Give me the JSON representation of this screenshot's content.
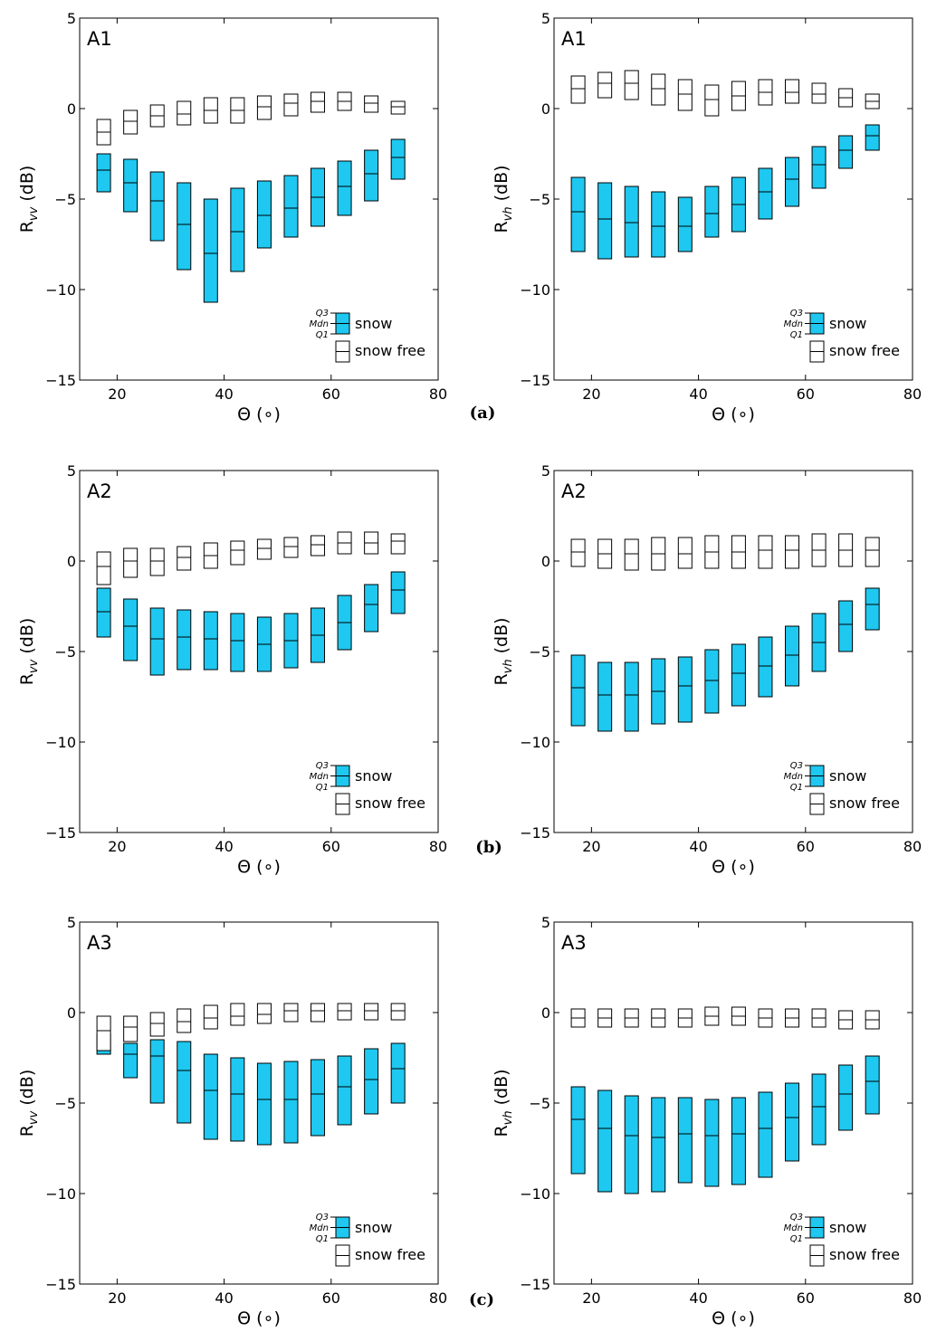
{
  "colors": {
    "snow": "#1ec8f0",
    "snow_free": "#ffffff",
    "stroke": "#000000"
  },
  "chart_data": [
    {
      "type": "box",
      "panel": "A1",
      "row_caption": "(a)",
      "ylabel_main": "R",
      "ylabel_sub": "vv",
      "ylabel_unit": " (dB)",
      "xlabel": "Θ (∘)",
      "xlim": [
        13,
        80
      ],
      "ylim": [
        -15,
        5
      ],
      "xticks": [
        20,
        40,
        60,
        80
      ],
      "yticks": [
        5,
        0,
        -5,
        -10,
        -15
      ],
      "xtick_labels": [
        "20",
        "40",
        "60",
        "80"
      ],
      "ytick_labels": [
        "5",
        "0",
        "−5",
        "−10",
        "−15"
      ],
      "x": [
        17.5,
        22.5,
        27.5,
        32.5,
        37.5,
        42.5,
        47.5,
        52.5,
        57.5,
        62.5,
        67.5,
        72.5
      ],
      "legend": {
        "q3": "Q3",
        "mdn": "Mdn",
        "q1": "Q1",
        "snow": "snow",
        "snow_free": "snow free"
      },
      "series": [
        {
          "name": "snow",
          "q1": [
            -4.6,
            -5.7,
            -7.3,
            -8.9,
            -10.7,
            -9.0,
            -7.7,
            -7.1,
            -6.5,
            -5.9,
            -5.1,
            -3.9
          ],
          "median": [
            -3.4,
            -4.1,
            -5.1,
            -6.4,
            -8.0,
            -6.8,
            -5.9,
            -5.5,
            -4.9,
            -4.3,
            -3.6,
            -2.7
          ],
          "q3": [
            -2.5,
            -2.8,
            -3.5,
            -4.1,
            -5.0,
            -4.4,
            -4.0,
            -3.7,
            -3.3,
            -2.9,
            -2.3,
            -1.7
          ]
        },
        {
          "name": "snow free",
          "q1": [
            -2.0,
            -1.4,
            -1.0,
            -0.9,
            -0.8,
            -0.8,
            -0.6,
            -0.4,
            -0.2,
            -0.1,
            -0.2,
            -0.3
          ],
          "median": [
            -1.3,
            -0.7,
            -0.4,
            -0.3,
            -0.1,
            -0.1,
            0.1,
            0.3,
            0.4,
            0.4,
            0.3,
            0.1
          ],
          "q3": [
            -0.6,
            -0.1,
            0.2,
            0.4,
            0.6,
            0.6,
            0.7,
            0.8,
            0.9,
            0.9,
            0.7,
            0.4
          ]
        }
      ]
    },
    {
      "type": "box",
      "panel": "A1",
      "row_caption": "",
      "ylabel_main": "R",
      "ylabel_sub": "vh",
      "ylabel_unit": " (dB)",
      "xlabel": "Θ (∘)",
      "xlim": [
        13,
        80
      ],
      "ylim": [
        -15,
        5
      ],
      "xticks": [
        20,
        40,
        60,
        80
      ],
      "yticks": [
        5,
        0,
        -5,
        -10,
        -15
      ],
      "xtick_labels": [
        "20",
        "40",
        "60",
        "80"
      ],
      "ytick_labels": [
        "5",
        "0",
        "−5",
        "−10",
        "−15"
      ],
      "x": [
        17.5,
        22.5,
        27.5,
        32.5,
        37.5,
        42.5,
        47.5,
        52.5,
        57.5,
        62.5,
        67.5,
        72.5
      ],
      "legend": {
        "q3": "Q3",
        "mdn": "Mdn",
        "q1": "Q1",
        "snow": "snow",
        "snow_free": "snow free"
      },
      "series": [
        {
          "name": "snow",
          "q1": [
            -7.9,
            -8.3,
            -8.2,
            -8.2,
            -7.9,
            -7.1,
            -6.8,
            -6.1,
            -5.4,
            -4.4,
            -3.3,
            -2.3
          ],
          "median": [
            -5.7,
            -6.1,
            -6.3,
            -6.5,
            -6.5,
            -5.8,
            -5.3,
            -4.6,
            -3.9,
            -3.1,
            -2.3,
            -1.5
          ],
          "q3": [
            -3.8,
            -4.1,
            -4.3,
            -4.6,
            -4.9,
            -4.3,
            -3.8,
            -3.3,
            -2.7,
            -2.1,
            -1.5,
            -0.9
          ]
        },
        {
          "name": "snow free",
          "q1": [
            0.3,
            0.6,
            0.5,
            0.2,
            -0.1,
            -0.4,
            -0.1,
            0.2,
            0.3,
            0.3,
            0.1,
            0.0
          ],
          "median": [
            1.1,
            1.4,
            1.4,
            1.1,
            0.8,
            0.5,
            0.7,
            0.9,
            0.9,
            0.8,
            0.6,
            0.4
          ],
          "q3": [
            1.8,
            2.0,
            2.1,
            1.9,
            1.6,
            1.3,
            1.5,
            1.6,
            1.6,
            1.4,
            1.1,
            0.8
          ]
        }
      ]
    },
    {
      "type": "box",
      "panel": "A2",
      "row_caption": "(b)",
      "ylabel_main": "R",
      "ylabel_sub": "vv",
      "ylabel_unit": " (dB)",
      "xlabel": "Θ (∘)",
      "xlim": [
        13,
        80
      ],
      "ylim": [
        -15,
        5
      ],
      "xticks": [
        20,
        40,
        60,
        80
      ],
      "yticks": [
        5,
        0,
        -5,
        -10,
        -15
      ],
      "xtick_labels": [
        "20",
        "40",
        "60",
        "80"
      ],
      "ytick_labels": [
        "5",
        "0",
        "−5",
        "−10",
        "−15"
      ],
      "x": [
        17.5,
        22.5,
        27.5,
        32.5,
        37.5,
        42.5,
        47.5,
        52.5,
        57.5,
        62.5,
        67.5,
        72.5
      ],
      "legend": {
        "q3": "Q3",
        "mdn": "Mdn",
        "q1": "Q1",
        "snow": "snow",
        "snow_free": "snow free"
      },
      "series": [
        {
          "name": "snow",
          "q1": [
            -4.2,
            -5.5,
            -6.3,
            -6.0,
            -6.0,
            -6.1,
            -6.1,
            -5.9,
            -5.6,
            -4.9,
            -3.9,
            -2.9
          ],
          "median": [
            -2.8,
            -3.6,
            -4.3,
            -4.2,
            -4.3,
            -4.4,
            -4.6,
            -4.4,
            -4.1,
            -3.4,
            -2.4,
            -1.6
          ],
          "q3": [
            -1.5,
            -2.1,
            -2.6,
            -2.7,
            -2.8,
            -2.9,
            -3.1,
            -2.9,
            -2.6,
            -1.9,
            -1.3,
            -0.6
          ]
        },
        {
          "name": "snow free",
          "q1": [
            -1.3,
            -0.9,
            -0.8,
            -0.5,
            -0.4,
            -0.2,
            0.1,
            0.2,
            0.3,
            0.4,
            0.4,
            0.4
          ],
          "median": [
            -0.3,
            0.0,
            0.0,
            0.2,
            0.3,
            0.6,
            0.7,
            0.8,
            0.9,
            1.0,
            1.0,
            1.1
          ],
          "q3": [
            0.5,
            0.7,
            0.7,
            0.8,
            1.0,
            1.1,
            1.2,
            1.3,
            1.4,
            1.6,
            1.6,
            1.5
          ]
        }
      ]
    },
    {
      "type": "box",
      "panel": "A2",
      "row_caption": "",
      "ylabel_main": "R",
      "ylabel_sub": "vh",
      "ylabel_unit": " (dB)",
      "xlabel": "Θ (∘)",
      "xlim": [
        13,
        80
      ],
      "ylim": [
        -15,
        5
      ],
      "xticks": [
        20,
        40,
        60,
        80
      ],
      "yticks": [
        5,
        0,
        -5,
        -10,
        -15
      ],
      "xtick_labels": [
        "20",
        "40",
        "60",
        "80"
      ],
      "ytick_labels": [
        "5",
        "0",
        "−5",
        "−10",
        "−15"
      ],
      "x": [
        17.5,
        22.5,
        27.5,
        32.5,
        37.5,
        42.5,
        47.5,
        52.5,
        57.5,
        62.5,
        67.5,
        72.5
      ],
      "legend": {
        "q3": "Q3",
        "mdn": "Mdn",
        "q1": "Q1",
        "snow": "snow",
        "snow_free": "snow free"
      },
      "series": [
        {
          "name": "snow",
          "q1": [
            -9.1,
            -9.4,
            -9.4,
            -9.0,
            -8.9,
            -8.4,
            -8.0,
            -7.5,
            -6.9,
            -6.1,
            -5.0,
            -3.8
          ],
          "median": [
            -7.0,
            -7.4,
            -7.4,
            -7.2,
            -6.9,
            -6.6,
            -6.2,
            -5.8,
            -5.2,
            -4.5,
            -3.5,
            -2.4
          ],
          "q3": [
            -5.2,
            -5.6,
            -5.6,
            -5.4,
            -5.3,
            -4.9,
            -4.6,
            -4.2,
            -3.6,
            -2.9,
            -2.2,
            -1.5
          ]
        },
        {
          "name": "snow free",
          "q1": [
            -0.3,
            -0.4,
            -0.5,
            -0.5,
            -0.4,
            -0.4,
            -0.4,
            -0.4,
            -0.4,
            -0.3,
            -0.3,
            -0.3
          ],
          "median": [
            0.5,
            0.4,
            0.4,
            0.4,
            0.4,
            0.5,
            0.5,
            0.6,
            0.6,
            0.6,
            0.6,
            0.6
          ],
          "q3": [
            1.2,
            1.2,
            1.2,
            1.3,
            1.3,
            1.4,
            1.4,
            1.4,
            1.4,
            1.5,
            1.5,
            1.3
          ]
        }
      ]
    },
    {
      "type": "box",
      "panel": "A3",
      "row_caption": "(c)",
      "ylabel_main": "R",
      "ylabel_sub": "vv",
      "ylabel_unit": " (dB)",
      "xlabel": "Θ (∘)",
      "xlim": [
        13,
        80
      ],
      "ylim": [
        -15,
        5
      ],
      "xticks": [
        20,
        40,
        60,
        80
      ],
      "yticks": [
        5,
        0,
        -5,
        -10,
        -15
      ],
      "xtick_labels": [
        "20",
        "40",
        "60",
        "80"
      ],
      "ytick_labels": [
        "5",
        "0",
        "−5",
        "−10",
        "−15"
      ],
      "x": [
        17.5,
        22.5,
        27.5,
        32.5,
        37.5,
        42.5,
        47.5,
        52.5,
        57.5,
        62.5,
        67.5,
        72.5
      ],
      "legend": {
        "q3": "Q3",
        "mdn": "Mdn",
        "q1": "Q1",
        "snow": "snow",
        "snow_free": "snow free"
      },
      "series": [
        {
          "name": "snow",
          "q1": [
            -2.3,
            -3.6,
            -5.0,
            -6.1,
            -7.0,
            -7.1,
            -7.3,
            -7.2,
            -6.8,
            -6.2,
            -5.6,
            -5.0
          ],
          "median": [
            -2.0,
            -2.3,
            -2.4,
            -3.2,
            -4.3,
            -4.5,
            -4.8,
            -4.8,
            -4.5,
            -4.1,
            -3.7,
            -3.1
          ],
          "q3": [
            -1.2,
            -1.7,
            -1.5,
            -1.6,
            -2.3,
            -2.5,
            -2.8,
            -2.7,
            -2.6,
            -2.4,
            -2.0,
            -1.7
          ]
        },
        {
          "name": "snow free",
          "q1": [
            -2.1,
            -1.6,
            -1.3,
            -1.1,
            -0.9,
            -0.7,
            -0.6,
            -0.5,
            -0.5,
            -0.4,
            -0.4,
            -0.4
          ],
          "median": [
            -1.0,
            -0.8,
            -0.6,
            -0.5,
            -0.3,
            -0.2,
            -0.1,
            0.1,
            0.1,
            0.1,
            0.1,
            0.1
          ],
          "q3": [
            -0.2,
            -0.2,
            0.0,
            0.2,
            0.4,
            0.5,
            0.5,
            0.5,
            0.5,
            0.5,
            0.5,
            0.5
          ]
        }
      ]
    },
    {
      "type": "box",
      "panel": "A3",
      "row_caption": "",
      "ylabel_main": "R",
      "ylabel_sub": "vh",
      "ylabel_unit": " (dB)",
      "xlabel": "Θ (∘)",
      "xlim": [
        13,
        80
      ],
      "ylim": [
        -15,
        5
      ],
      "xticks": [
        20,
        40,
        60,
        80
      ],
      "yticks": [
        5,
        0,
        -5,
        -10,
        -15
      ],
      "xtick_labels": [
        "20",
        "40",
        "60",
        "80"
      ],
      "ytick_labels": [
        "5",
        "0",
        "−5",
        "−10",
        "−15"
      ],
      "x": [
        17.5,
        22.5,
        27.5,
        32.5,
        37.5,
        42.5,
        47.5,
        52.5,
        57.5,
        62.5,
        67.5,
        72.5
      ],
      "legend": {
        "q3": "Q3",
        "mdn": "Mdn",
        "q1": "Q1",
        "snow": "snow",
        "snow_free": "snow free"
      },
      "series": [
        {
          "name": "snow",
          "q1": [
            -8.9,
            -9.9,
            -10.0,
            -9.9,
            -9.4,
            -9.6,
            -9.5,
            -9.1,
            -8.2,
            -7.3,
            -6.5,
            -5.6
          ],
          "median": [
            -5.9,
            -6.4,
            -6.8,
            -6.9,
            -6.7,
            -6.8,
            -6.7,
            -6.4,
            -5.8,
            -5.2,
            -4.5,
            -3.8
          ],
          "q3": [
            -4.1,
            -4.3,
            -4.6,
            -4.7,
            -4.7,
            -4.8,
            -4.7,
            -4.4,
            -3.9,
            -3.4,
            -2.9,
            -2.4
          ]
        },
        {
          "name": "snow free",
          "q1": [
            -0.8,
            -0.8,
            -0.8,
            -0.8,
            -0.8,
            -0.7,
            -0.7,
            -0.8,
            -0.8,
            -0.8,
            -0.9,
            -0.9
          ],
          "median": [
            -0.3,
            -0.3,
            -0.3,
            -0.3,
            -0.3,
            -0.2,
            -0.2,
            -0.3,
            -0.3,
            -0.3,
            -0.4,
            -0.4
          ],
          "q3": [
            0.2,
            0.2,
            0.2,
            0.2,
            0.2,
            0.3,
            0.3,
            0.2,
            0.2,
            0.2,
            0.1,
            0.1
          ]
        }
      ]
    }
  ]
}
